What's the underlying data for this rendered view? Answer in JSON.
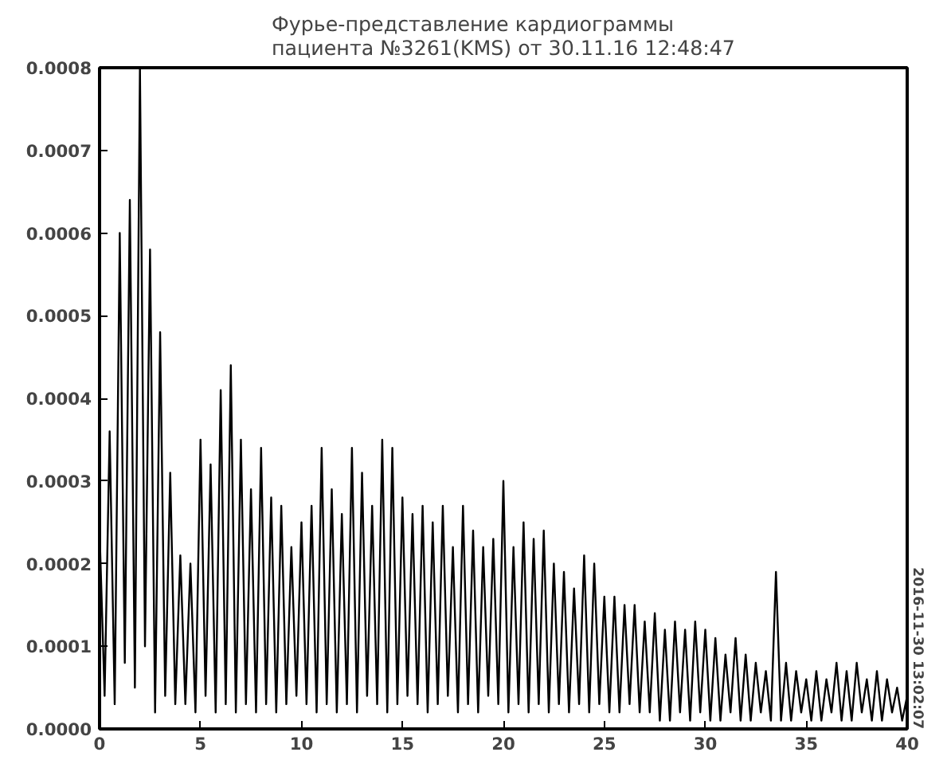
{
  "chart_data": {
    "type": "line",
    "title": "Фурье-представление кардиограммы\nпациента №3261(KMS) от 30.11.16 12:48:47",
    "annotations": [
      "2016-11-30 13:02:07"
    ],
    "xlim": [
      0,
      40
    ],
    "xticks": [
      0,
      5,
      10,
      15,
      20,
      25,
      30,
      35,
      40
    ],
    "ylim": [
      0,
      0.0008
    ],
    "yticks": [
      {
        "value": 0,
        "label": "0.0000"
      },
      0.0001,
      0.0002,
      0.0003,
      0.0004,
      0.0005,
      0.0006,
      0.0007,
      0.0008
    ],
    "grid": false,
    "marker": "none",
    "line_style": "solid",
    "series": [
      {
        "color": "#000000",
        "x": [
          0,
          0.25,
          0.5,
          0.75,
          1,
          1.25,
          1.5,
          1.75,
          2,
          2.25,
          2.5,
          2.75,
          3,
          3.25,
          3.5,
          3.75,
          4,
          4.25,
          4.5,
          4.75,
          5,
          5.25,
          5.5,
          5.75,
          6,
          6.25,
          6.5,
          6.75,
          7,
          7.25,
          7.5,
          7.75,
          8,
          8.25,
          8.5,
          8.75,
          9,
          9.25,
          9.5,
          9.75,
          10,
          10.25,
          10.5,
          10.75,
          11,
          11.25,
          11.5,
          11.75,
          12,
          12.25,
          12.5,
          12.75,
          13,
          13.25,
          13.5,
          13.75,
          14,
          14.25,
          14.5,
          14.75,
          15,
          15.25,
          15.5,
          15.75,
          16,
          16.25,
          16.5,
          16.75,
          17,
          17.25,
          17.5,
          17.75,
          18,
          18.25,
          18.5,
          18.75,
          19,
          19.25,
          19.5,
          19.75,
          20,
          20.25,
          20.5,
          20.75,
          21,
          21.25,
          21.5,
          21.75,
          22,
          22.25,
          22.5,
          22.75,
          23,
          23.25,
          23.5,
          23.75,
          24,
          24.25,
          24.5,
          24.75,
          25,
          25.25,
          25.5,
          25.75,
          26,
          26.25,
          26.5,
          26.75,
          27,
          27.25,
          27.5,
          27.75,
          28,
          28.25,
          28.5,
          28.75,
          29,
          29.25,
          29.5,
          29.75,
          30,
          30.25,
          30.5,
          30.75,
          31,
          31.25,
          31.5,
          31.75,
          32,
          32.25,
          32.5,
          32.75,
          33,
          33.25,
          33.5,
          33.75,
          34,
          34.25,
          34.5,
          34.75,
          35,
          35.25,
          35.5,
          35.75,
          36,
          36.25,
          36.5,
          36.75,
          37,
          37.25,
          37.5,
          37.75,
          38,
          38.25,
          38.5,
          38.75,
          39,
          39.25,
          39.5,
          39.75,
          40
        ],
        "values": [
          0.00024,
          4e-05,
          0.00036,
          3e-05,
          0.0006,
          8e-05,
          0.00064,
          5e-05,
          0.0008,
          0.0001,
          0.00058,
          2e-05,
          0.00048,
          4e-05,
          0.00031,
          3e-05,
          0.00021,
          3e-05,
          0.0002,
          2e-05,
          0.00035,
          4e-05,
          0.00032,
          2e-05,
          0.00041,
          3e-05,
          0.00044,
          2e-05,
          0.00035,
          3e-05,
          0.00029,
          2e-05,
          0.00034,
          3e-05,
          0.00028,
          2e-05,
          0.00027,
          3e-05,
          0.00022,
          4e-05,
          0.00025,
          3e-05,
          0.00027,
          2e-05,
          0.00034,
          3e-05,
          0.00029,
          2e-05,
          0.00026,
          3e-05,
          0.00034,
          2e-05,
          0.00031,
          4e-05,
          0.00027,
          3e-05,
          0.00035,
          2e-05,
          0.00034,
          3e-05,
          0.00028,
          4e-05,
          0.00026,
          3e-05,
          0.00027,
          2e-05,
          0.00025,
          3e-05,
          0.00027,
          4e-05,
          0.00022,
          2e-05,
          0.00027,
          3e-05,
          0.00024,
          2e-05,
          0.00022,
          4e-05,
          0.00023,
          3e-05,
          0.0003,
          2e-05,
          0.00022,
          3e-05,
          0.00025,
          2e-05,
          0.00023,
          3e-05,
          0.00024,
          2e-05,
          0.0002,
          3e-05,
          0.00019,
          2e-05,
          0.00017,
          3e-05,
          0.00021,
          2e-05,
          0.0002,
          3e-05,
          0.00016,
          2e-05,
          0.00016,
          2e-05,
          0.00015,
          3e-05,
          0.00015,
          2e-05,
          0.00013,
          2e-05,
          0.00014,
          1e-05,
          0.00012,
          1e-05,
          0.00013,
          2e-05,
          0.00012,
          1e-05,
          0.00013,
          2e-05,
          0.00012,
          1e-05,
          0.00011,
          1e-05,
          9e-05,
          2e-05,
          0.00011,
          1e-05,
          9e-05,
          1e-05,
          8e-05,
          2e-05,
          7e-05,
          1e-05,
          0.00019,
          1e-05,
          8e-05,
          1e-05,
          7e-05,
          2e-05,
          6e-05,
          1e-05,
          7e-05,
          1e-05,
          6e-05,
          2e-05,
          8e-05,
          1e-05,
          7e-05,
          1e-05,
          8e-05,
          2e-05,
          6e-05,
          1e-05,
          7e-05,
          1e-05,
          6e-05,
          2e-05,
          5e-05,
          1e-05,
          4e-05
        ]
      }
    ]
  }
}
